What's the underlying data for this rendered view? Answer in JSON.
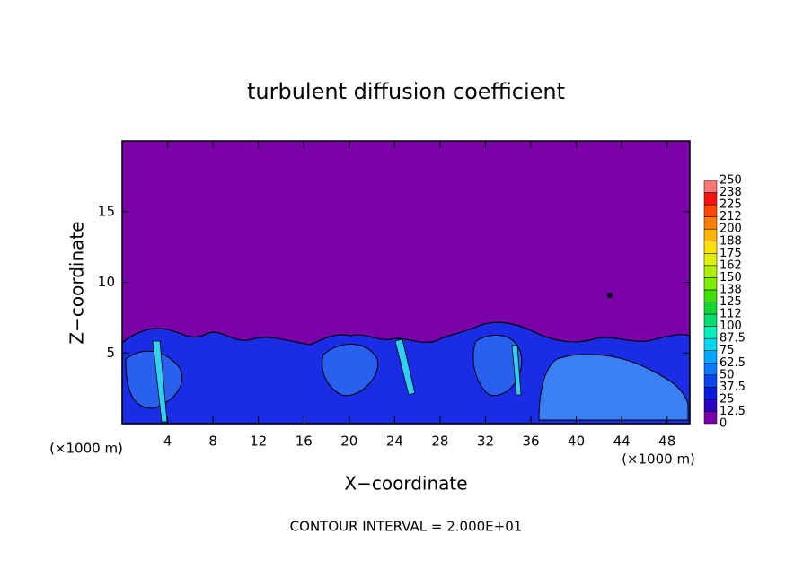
{
  "chart_data": {
    "type": "heatmap",
    "title": "turbulent diffusion coefficient",
    "x_label": "X−coordinate",
    "y_label": "Z−coordinate",
    "x_unit_label": "(×1000 m)",
    "y_unit_label": "(×1000 m)",
    "footer": "CONTOUR INTERVAL = 2.000E+01",
    "xlim": [
      0,
      50
    ],
    "ylim": [
      0,
      20
    ],
    "xticks": [
      4,
      8,
      12,
      16,
      20,
      24,
      28,
      32,
      36,
      40,
      44,
      48
    ],
    "yticks": [
      5,
      10,
      15
    ],
    "colorbar": {
      "levels": [
        0,
        12.5,
        25,
        37.5,
        50,
        62.5,
        75,
        87.5,
        100,
        112,
        125,
        138,
        150,
        162,
        175,
        188,
        200,
        212,
        225,
        238,
        250
      ],
      "colors": [
        "#7a00a8",
        "#2c00c4",
        "#0a1ce0",
        "#0a46f0",
        "#0a78ff",
        "#00a8ff",
        "#00d8f0",
        "#00f0b8",
        "#00e070",
        "#10d830",
        "#40e000",
        "#80ee00",
        "#b0f000",
        "#e0f000",
        "#ffe000",
        "#ffb400",
        "#ff8000",
        "#ff4800",
        "#ff1010",
        "#ff7878"
      ]
    }
  }
}
